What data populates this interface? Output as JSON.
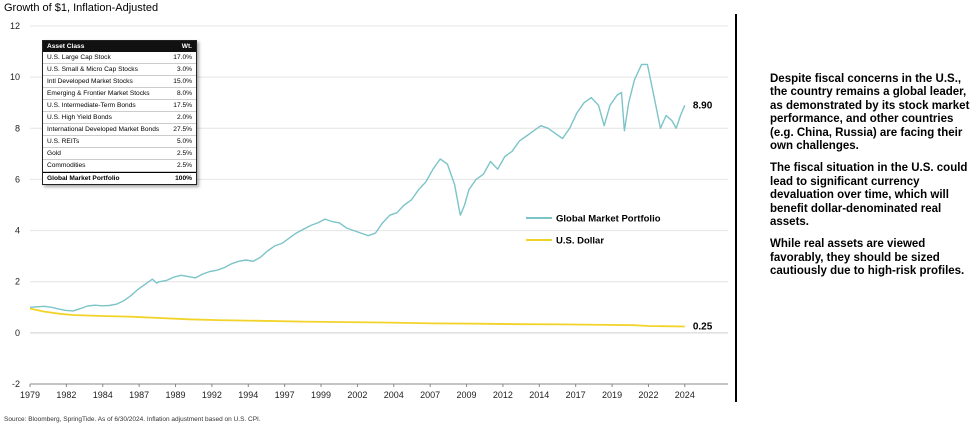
{
  "chart_data": {
    "type": "line",
    "title": "Growth of $1, Inflation-Adjusted",
    "xlabel": "",
    "ylabel": "",
    "ylim": [
      -2,
      12
    ],
    "yticks": [
      "-2",
      "0",
      "2",
      "4",
      "6",
      "8",
      "10",
      "12"
    ],
    "xticks": [
      "1979",
      "1982",
      "1984",
      "1987",
      "1989",
      "1992",
      "1994",
      "1997",
      "1999",
      "2002",
      "2004",
      "2007",
      "2009",
      "2012",
      "2014",
      "2017",
      "2019",
      "2022",
      "2024"
    ],
    "grid": true,
    "legend_placement": "center-right",
    "series": [
      {
        "name": "Global Market Portfolio",
        "color": "#7cc4c8",
        "end_label": "8.90",
        "points": [
          [
            1979.0,
            1.0
          ],
          [
            1979.5,
            1.02
          ],
          [
            1980.0,
            1.04
          ],
          [
            1980.5,
            1.0
          ],
          [
            1981.0,
            0.93
          ],
          [
            1981.5,
            0.88
          ],
          [
            1982.0,
            0.86
          ],
          [
            1982.5,
            0.95
          ],
          [
            1983.0,
            1.05
          ],
          [
            1983.5,
            1.08
          ],
          [
            1984.0,
            1.06
          ],
          [
            1984.5,
            1.07
          ],
          [
            1985.0,
            1.12
          ],
          [
            1985.5,
            1.25
          ],
          [
            1986.0,
            1.45
          ],
          [
            1986.5,
            1.7
          ],
          [
            1987.0,
            1.9
          ],
          [
            1987.5,
            2.1
          ],
          [
            1987.8,
            1.95
          ],
          [
            1988.0,
            2.0
          ],
          [
            1988.5,
            2.05
          ],
          [
            1989.0,
            2.18
          ],
          [
            1989.5,
            2.25
          ],
          [
            1990.0,
            2.2
          ],
          [
            1990.5,
            2.15
          ],
          [
            1991.0,
            2.3
          ],
          [
            1991.5,
            2.4
          ],
          [
            1992.0,
            2.45
          ],
          [
            1992.5,
            2.55
          ],
          [
            1993.0,
            2.7
          ],
          [
            1993.5,
            2.8
          ],
          [
            1994.0,
            2.85
          ],
          [
            1994.5,
            2.8
          ],
          [
            1995.0,
            2.95
          ],
          [
            1995.5,
            3.2
          ],
          [
            1996.0,
            3.4
          ],
          [
            1996.5,
            3.5
          ],
          [
            1997.0,
            3.7
          ],
          [
            1997.5,
            3.9
          ],
          [
            1998.0,
            4.05
          ],
          [
            1998.5,
            4.2
          ],
          [
            1999.0,
            4.3
          ],
          [
            1999.5,
            4.45
          ],
          [
            2000.0,
            4.35
          ],
          [
            2000.5,
            4.3
          ],
          [
            2001.0,
            4.1
          ],
          [
            2001.5,
            4.0
          ],
          [
            2002.0,
            3.9
          ],
          [
            2002.5,
            3.8
          ],
          [
            2003.0,
            3.9
          ],
          [
            2003.5,
            4.3
          ],
          [
            2004.0,
            4.6
          ],
          [
            2004.5,
            4.7
          ],
          [
            2005.0,
            5.0
          ],
          [
            2005.5,
            5.2
          ],
          [
            2006.0,
            5.6
          ],
          [
            2006.5,
            5.9
          ],
          [
            2007.0,
            6.4
          ],
          [
            2007.5,
            6.8
          ],
          [
            2008.0,
            6.6
          ],
          [
            2008.5,
            5.8
          ],
          [
            2008.9,
            4.6
          ],
          [
            2009.2,
            5.0
          ],
          [
            2009.5,
            5.6
          ],
          [
            2010.0,
            6.0
          ],
          [
            2010.5,
            6.2
          ],
          [
            2011.0,
            6.7
          ],
          [
            2011.5,
            6.4
          ],
          [
            2012.0,
            6.9
          ],
          [
            2012.5,
            7.1
          ],
          [
            2013.0,
            7.5
          ],
          [
            2013.5,
            7.7
          ],
          [
            2014.0,
            7.9
          ],
          [
            2014.5,
            8.1
          ],
          [
            2015.0,
            8.0
          ],
          [
            2015.5,
            7.8
          ],
          [
            2016.0,
            7.6
          ],
          [
            2016.5,
            8.0
          ],
          [
            2017.0,
            8.6
          ],
          [
            2017.5,
            9.0
          ],
          [
            2018.0,
            9.2
          ],
          [
            2018.5,
            8.9
          ],
          [
            2018.9,
            8.1
          ],
          [
            2019.3,
            8.9
          ],
          [
            2019.8,
            9.3
          ],
          [
            2020.1,
            9.4
          ],
          [
            2020.3,
            7.9
          ],
          [
            2020.6,
            9.0
          ],
          [
            2021.0,
            9.9
          ],
          [
            2021.5,
            10.5
          ],
          [
            2021.9,
            10.5
          ],
          [
            2022.3,
            9.4
          ],
          [
            2022.8,
            8.0
          ],
          [
            2023.2,
            8.5
          ],
          [
            2023.6,
            8.3
          ],
          [
            2023.9,
            8.0
          ],
          [
            2024.2,
            8.5
          ],
          [
            2024.5,
            8.9
          ]
        ]
      },
      {
        "name": "U.S. Dollar",
        "color": "#f2d32a",
        "end_label": "0.25",
        "points": [
          [
            1979.0,
            0.95
          ],
          [
            1980.0,
            0.83
          ],
          [
            1981.0,
            0.75
          ],
          [
            1982.0,
            0.7
          ],
          [
            1984.0,
            0.66
          ],
          [
            1986.0,
            0.63
          ],
          [
            1988.0,
            0.58
          ],
          [
            1990.0,
            0.53
          ],
          [
            1992.0,
            0.5
          ],
          [
            1995.0,
            0.47
          ],
          [
            1998.0,
            0.44
          ],
          [
            2001.0,
            0.42
          ],
          [
            2004.0,
            0.4
          ],
          [
            2007.0,
            0.37
          ],
          [
            2010.0,
            0.36
          ],
          [
            2013.0,
            0.34
          ],
          [
            2016.0,
            0.33
          ],
          [
            2019.0,
            0.31
          ],
          [
            2021.0,
            0.3
          ],
          [
            2022.0,
            0.27
          ],
          [
            2023.0,
            0.26
          ],
          [
            2024.5,
            0.25
          ]
        ]
      }
    ]
  },
  "allocation": {
    "header_label": "Asset Class",
    "header_weight": "Wt.",
    "rows": [
      {
        "label": "U.S. Large Cap Stock",
        "weight": "17.0%"
      },
      {
        "label": "U.S. Small & Micro Cap Stocks",
        "weight": "3.0%"
      },
      {
        "label": "Intl Developed Market Stocks",
        "weight": "15.0%"
      },
      {
        "label": "Emerging & Frontier Market Stocks",
        "weight": "8.0%"
      },
      {
        "label": "U.S. Intermediate-Term Bonds",
        "weight": "17.5%"
      },
      {
        "label": "U.S. High Yield Bonds",
        "weight": "2.0%"
      },
      {
        "label": "International Developed Market Bonds",
        "weight": "27.5%"
      },
      {
        "label": "U.S. REITs",
        "weight": "5.0%"
      },
      {
        "label": "Gold",
        "weight": "2.5%"
      },
      {
        "label": "Commodities",
        "weight": "2.5%"
      }
    ],
    "total_label": "Global Market Portfolio",
    "total_weight": "100%"
  },
  "commentary": {
    "paragraph_1": "Despite fiscal concerns in the U.S., the country remains a global leader, as demonstrated by its stock market performance, and other countries (e.g. China, Russia) are facing their own challenges.",
    "paragraph_2": "The fiscal situation in the U.S. could lead to significant currency devaluation over time, which will benefit dollar-denominated real assets.",
    "paragraph_3": "While real assets are viewed favorably, they should be sized cautiously due to high-risk profiles."
  },
  "source": "Source: Bloomberg, SpringTide. As of 6/30/2024. Inflation adjustment based on U.S. CPI."
}
